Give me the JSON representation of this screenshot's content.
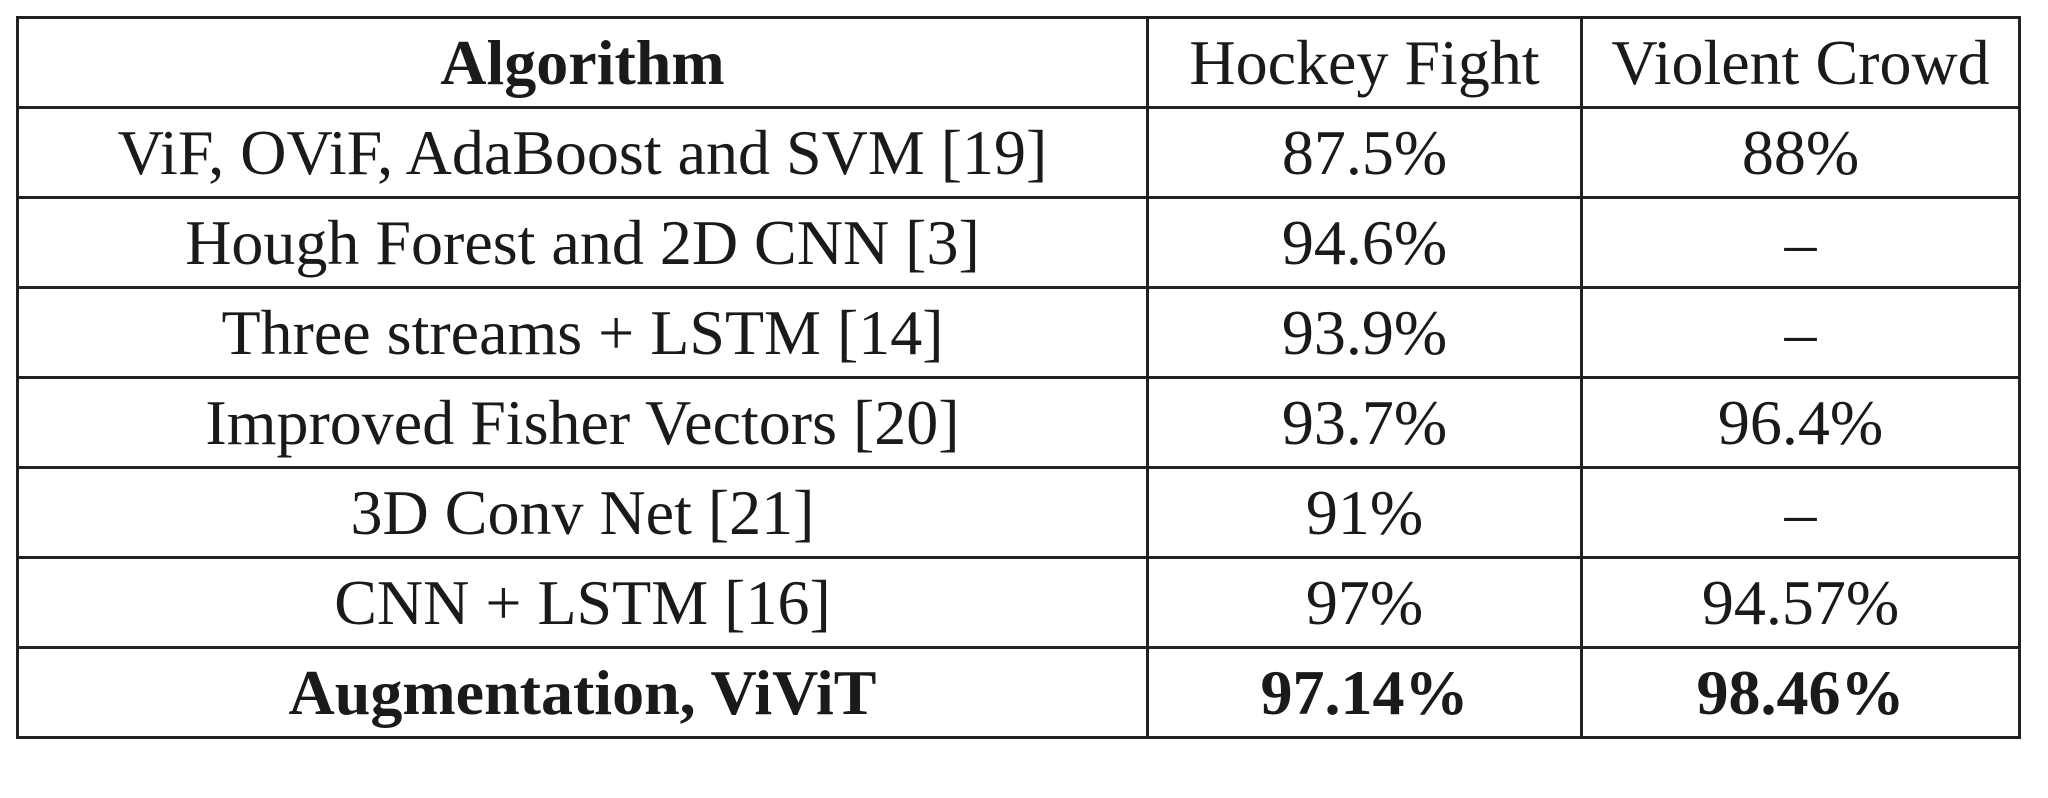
{
  "table": {
    "headers": [
      "Algorithm",
      "Hockey Fight",
      "Violent Crowd"
    ],
    "rows": [
      {
        "algorithm": "ViF, OViF, AdaBoost and SVM [19]",
        "hockey_fight": "87.5%",
        "violent_crowd": "88%"
      },
      {
        "algorithm": "Hough Forest and 2D CNN [3]",
        "hockey_fight": "94.6%",
        "violent_crowd": "–"
      },
      {
        "algorithm": "Three streams + LSTM [14]",
        "hockey_fight": "93.9%",
        "violent_crowd": "–"
      },
      {
        "algorithm": "Improved Fisher Vectors [20]",
        "hockey_fight": "93.7%",
        "violent_crowd": "96.4%"
      },
      {
        "algorithm": "3D Conv Net [21]",
        "hockey_fight": "91%",
        "violent_crowd": "–"
      },
      {
        "algorithm": "CNN + LSTM [16]",
        "hockey_fight": "97%",
        "violent_crowd": "94.57%"
      },
      {
        "algorithm": "Augmentation, ViViT",
        "hockey_fight": "97.14%",
        "violent_crowd": "98.46%"
      }
    ]
  }
}
